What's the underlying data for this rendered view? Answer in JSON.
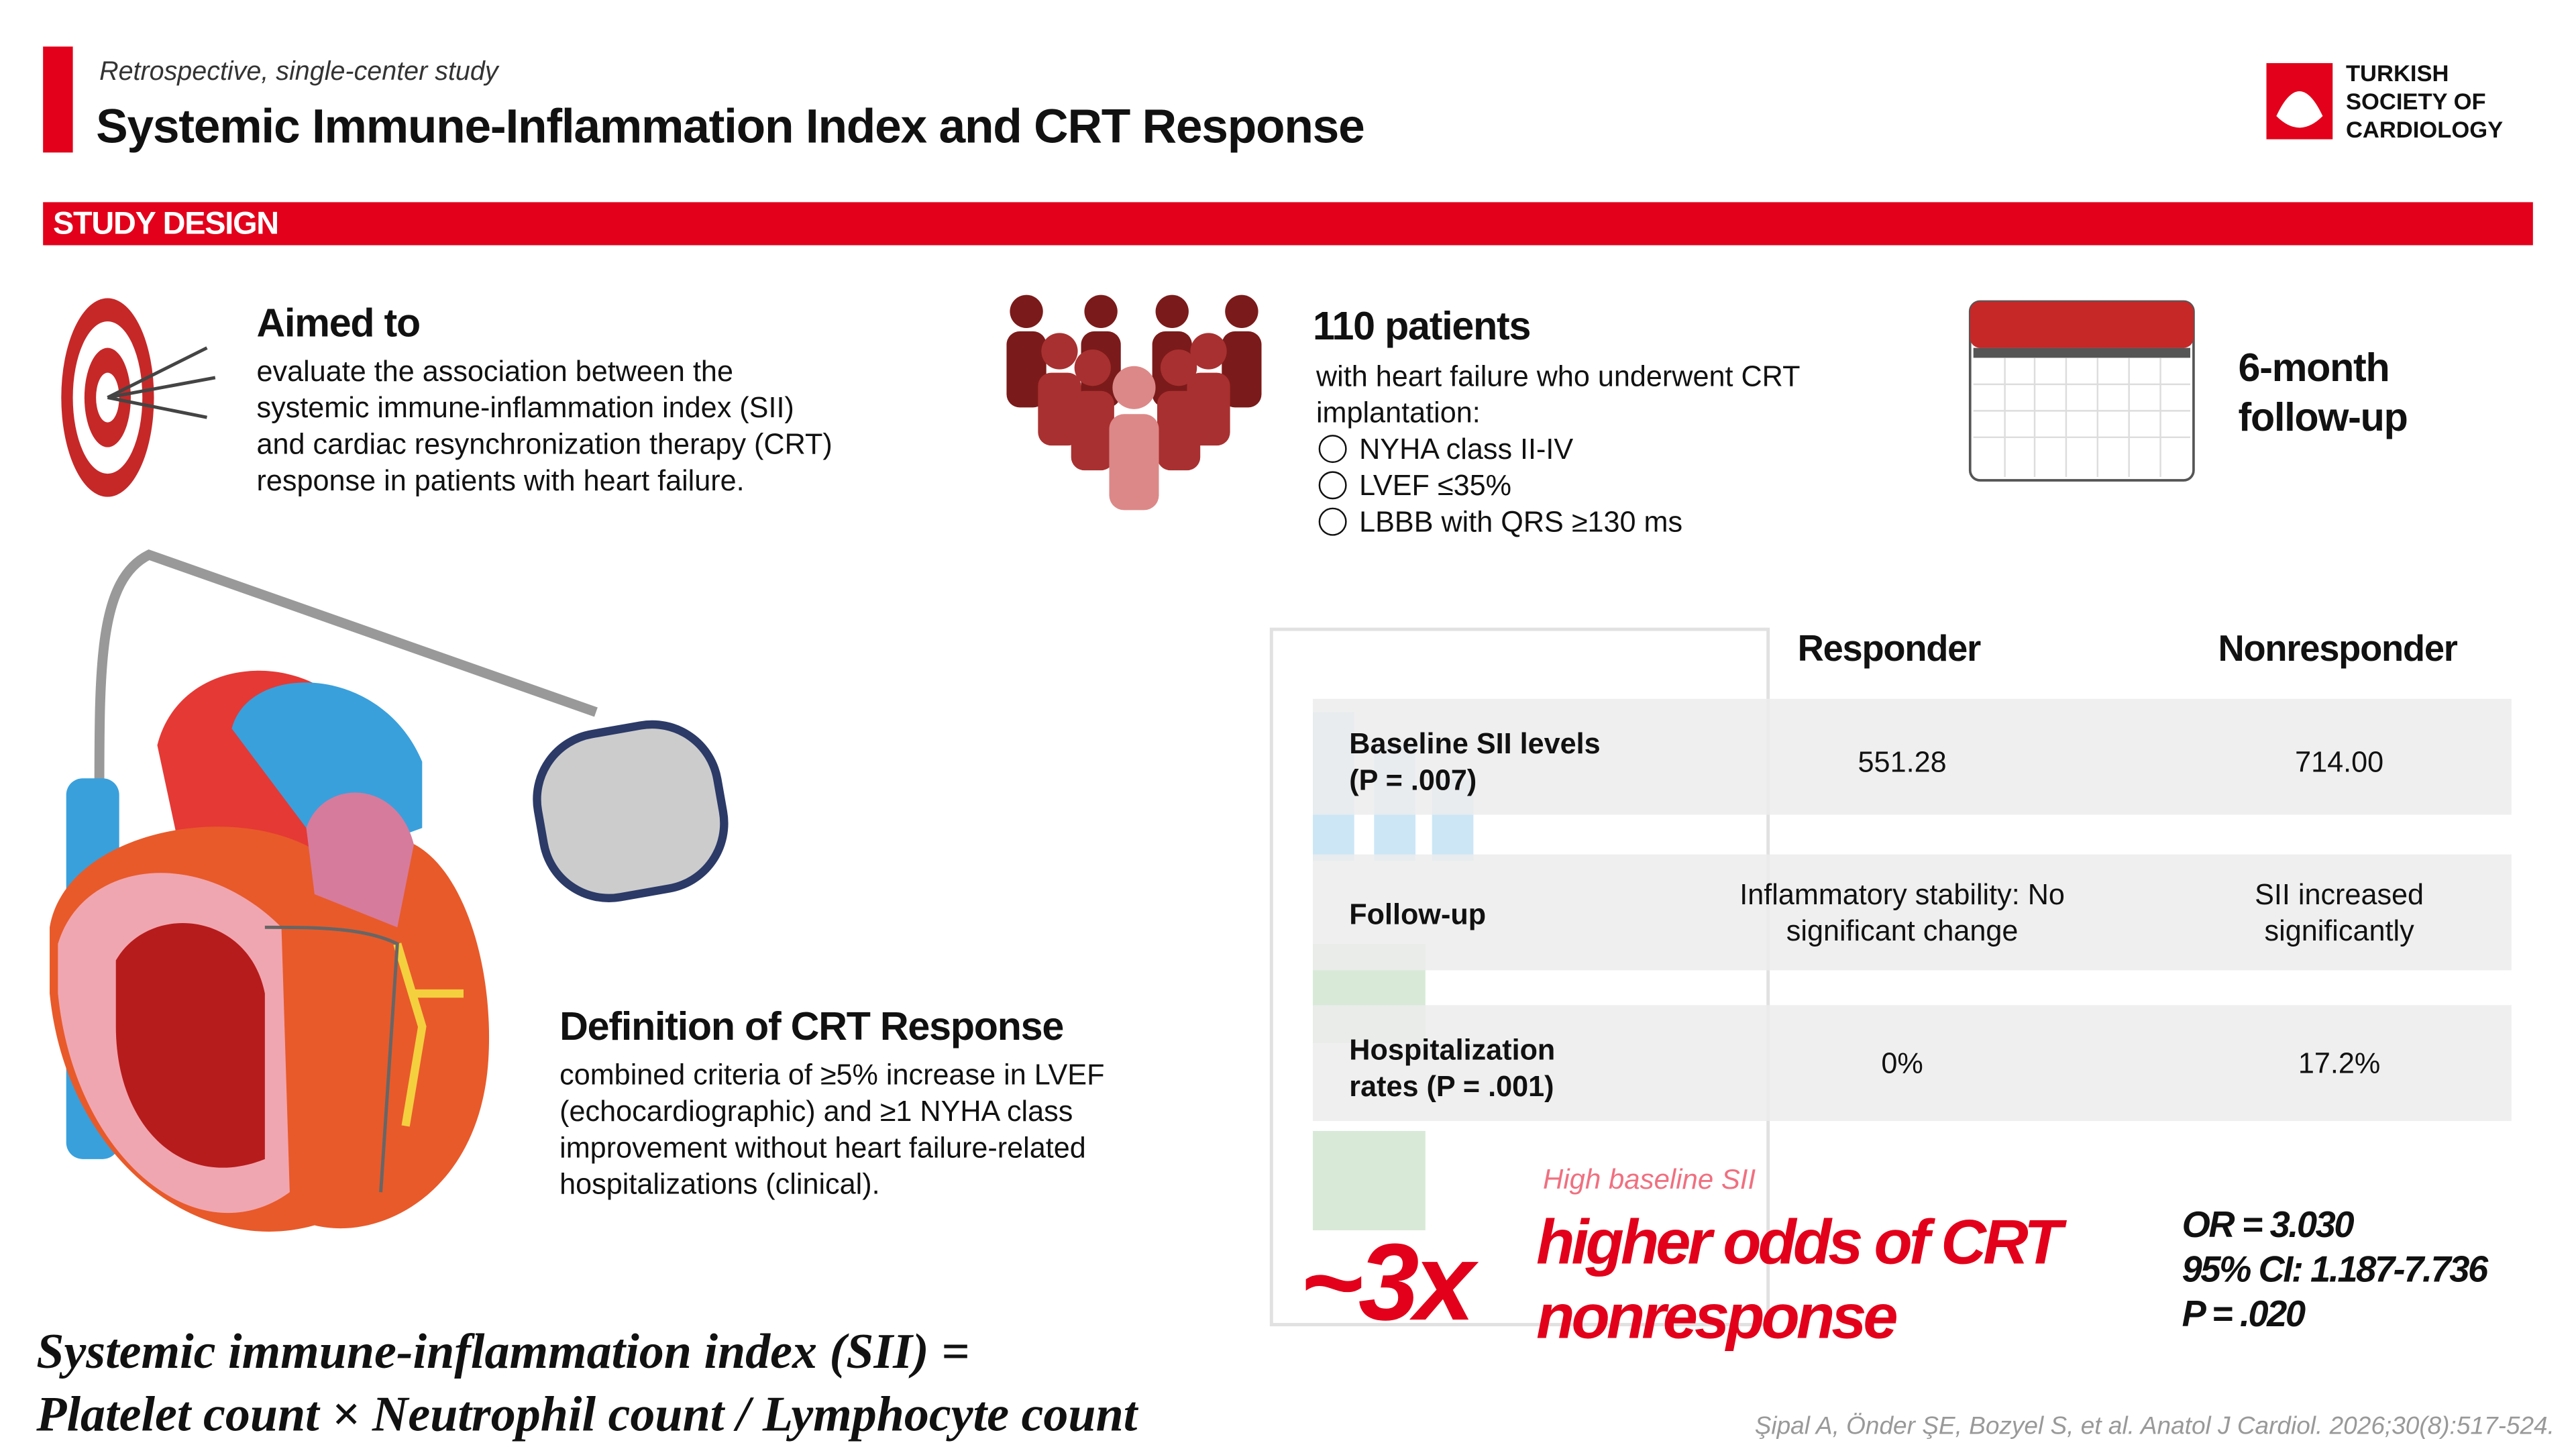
{
  "header": {
    "subtitle": "Retrospective, single-center study",
    "title": "Systemic Immune-Inflammation Index and CRT Response",
    "logo": [
      "TURKISH",
      "SOCIETY OF",
      "CARDIOLOGY"
    ]
  },
  "section": "STUDY DESIGN",
  "aim": {
    "title": "Aimed to",
    "lines": [
      "evaluate the association between the",
      "systemic immune-inflammation index (SII)",
      "and cardiac resynchronization therapy (CRT)",
      "response in patients with heart failure."
    ]
  },
  "patients": {
    "title": "110 patients",
    "lines": [
      "with heart failure who underwent CRT",
      "implantation:"
    ],
    "criteria": [
      "NYHA class II-IV",
      "LVEF ≤35%",
      "LBBB with QRS ≥130 ms"
    ]
  },
  "followup": [
    "6-month",
    "follow-up"
  ],
  "definition": {
    "title": "Definition of CRT Response",
    "lines": [
      "combined criteria of ≥5% increase in LVEF",
      "(echocardiographic) and ≥1 NYHA class",
      "improvement without heart failure-related",
      "hospitalizations (clinical)."
    ]
  },
  "table": {
    "headers": [
      "Responder",
      "Nonresponder"
    ],
    "rows": [
      {
        "label": [
          "Baseline SII levels",
          "(P = .007)"
        ],
        "responder": [
          "551.28"
        ],
        "nonresponder": [
          "714.00"
        ]
      },
      {
        "label": [
          "Follow-up"
        ],
        "responder": [
          "Inflammatory stability: No",
          "significant change"
        ],
        "nonresponder": [
          "SII increased",
          "significantly"
        ]
      },
      {
        "label": [
          "Hospitalization",
          "rates (P = .001)"
        ],
        "responder": [
          "0%"
        ],
        "nonresponder": [
          "17.2%"
        ]
      }
    ]
  },
  "result": {
    "label": "High baseline SII",
    "big": "~3x",
    "text": [
      "higher odds of CRT",
      "nonresponse"
    ],
    "stats": [
      "OR = 3.030",
      "95% CI: 1.187-7.736",
      "P = .020"
    ]
  },
  "formula": [
    "Systemic immune-inflammation index (SII) =",
    "Platelet count × Neutrophil count / Lymphocyte count"
  ],
  "citation": "Şipal A, Önder ŞE, Bozyel S, et al. Anatol J Cardiol. 2026;30(8):517-524."
}
